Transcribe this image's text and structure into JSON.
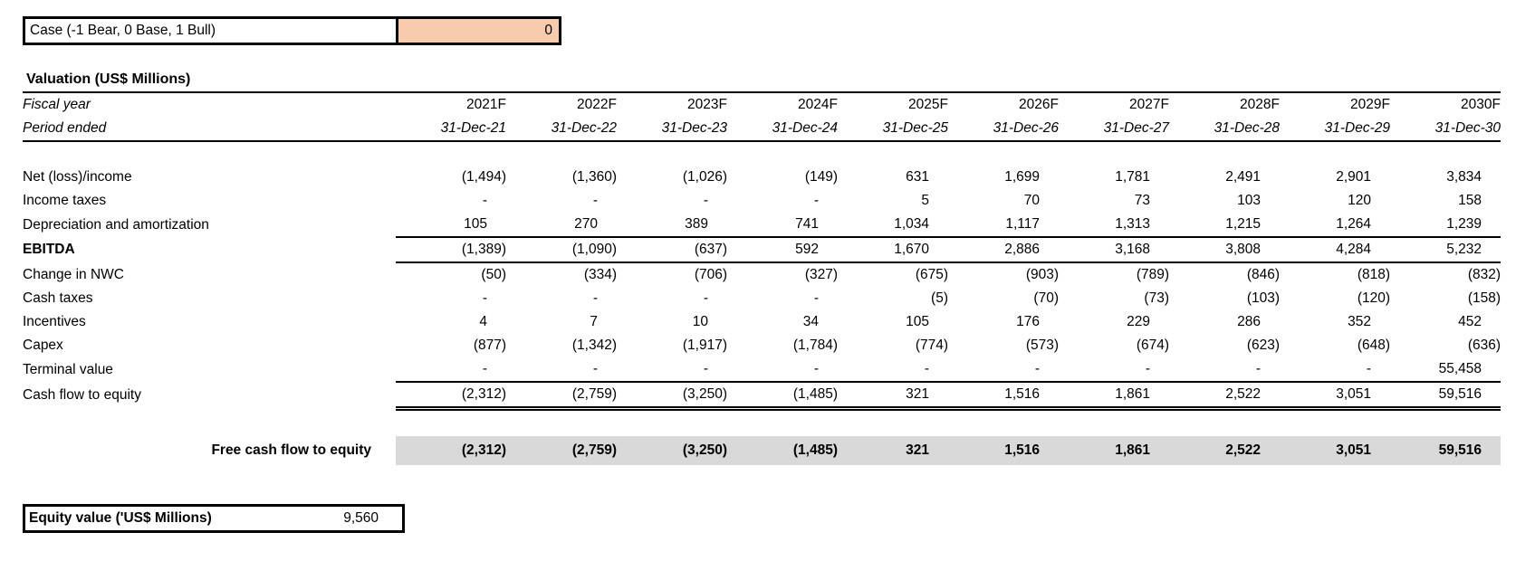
{
  "colors": {
    "case_fill": "#F8CBAD",
    "summary_fill": "#D9D9D9",
    "border": "#000000"
  },
  "case_control": {
    "label": "Case (-1 Bear, 0 Base, 1 Bull)",
    "value": "0"
  },
  "valuation": {
    "title": "Valuation (US$ Millions)",
    "fiscal_year_label": "Fiscal year",
    "period_ended_label": "Period ended",
    "years": [
      "2021F",
      "2022F",
      "2023F",
      "2024F",
      "2025F",
      "2026F",
      "2027F",
      "2028F",
      "2029F",
      "2030F"
    ],
    "period_ends": [
      "31-Dec-21",
      "31-Dec-22",
      "31-Dec-23",
      "31-Dec-24",
      "31-Dec-25",
      "31-Dec-26",
      "31-Dec-27",
      "31-Dec-28",
      "31-Dec-29",
      "31-Dec-30"
    ],
    "rows": [
      {
        "label": "Net (loss)/income",
        "style": "normal",
        "values": [
          "(1,494)",
          "(1,360)",
          "(1,026)",
          "(149)",
          "631",
          "1,699",
          "1,781",
          "2,491",
          "2,901",
          "3,834"
        ]
      },
      {
        "label": "Income taxes",
        "style": "normal",
        "values": [
          "-",
          "-",
          "-",
          "-",
          "5",
          "70",
          "73",
          "103",
          "120",
          "158"
        ]
      },
      {
        "label": "Depreciation and amortization",
        "style": "normal",
        "values": [
          "105",
          "270",
          "389",
          "741",
          "1,034",
          "1,117",
          "1,313",
          "1,215",
          "1,264",
          "1,239"
        ]
      },
      {
        "label": "EBITDA",
        "style": "subtotal",
        "values": [
          "(1,389)",
          "(1,090)",
          "(637)",
          "592",
          "1,670",
          "2,886",
          "3,168",
          "3,808",
          "4,284",
          "5,232"
        ]
      },
      {
        "label": "Change in NWC",
        "style": "normal",
        "values": [
          "(50)",
          "(334)",
          "(706)",
          "(327)",
          "(675)",
          "(903)",
          "(789)",
          "(846)",
          "(818)",
          "(832)"
        ]
      },
      {
        "label": "Cash taxes",
        "style": "normal",
        "values": [
          "-",
          "-",
          "-",
          "-",
          "(5)",
          "(70)",
          "(73)",
          "(103)",
          "(120)",
          "(158)"
        ]
      },
      {
        "label": "Incentives",
        "style": "normal",
        "values": [
          "4",
          "7",
          "10",
          "34",
          "105",
          "176",
          "229",
          "286",
          "352",
          "452"
        ]
      },
      {
        "label": "Capex",
        "style": "normal",
        "values": [
          "(877)",
          "(1,342)",
          "(1,917)",
          "(1,784)",
          "(774)",
          "(573)",
          "(674)",
          "(623)",
          "(648)",
          "(636)"
        ]
      },
      {
        "label": "Terminal value",
        "style": "normal",
        "values": [
          "-",
          "-",
          "-",
          "-",
          "-",
          "-",
          "-",
          "-",
          "-",
          "55,458"
        ]
      },
      {
        "label": "Cash flow to equity",
        "style": "total",
        "values": [
          "(2,312)",
          "(2,759)",
          "(3,250)",
          "(1,485)",
          "321",
          "1,516",
          "1,861",
          "2,522",
          "3,051",
          "59,516"
        ]
      }
    ],
    "summary_row": {
      "label": "Free cash flow to equity",
      "values": [
        "(2,312)",
        "(2,759)",
        "(3,250)",
        "(1,485)",
        "321",
        "1,516",
        "1,861",
        "2,522",
        "3,051",
        "59,516"
      ]
    }
  },
  "equity_value": {
    "label": "Equity value ('US$ Millions)",
    "value": "9,560"
  }
}
